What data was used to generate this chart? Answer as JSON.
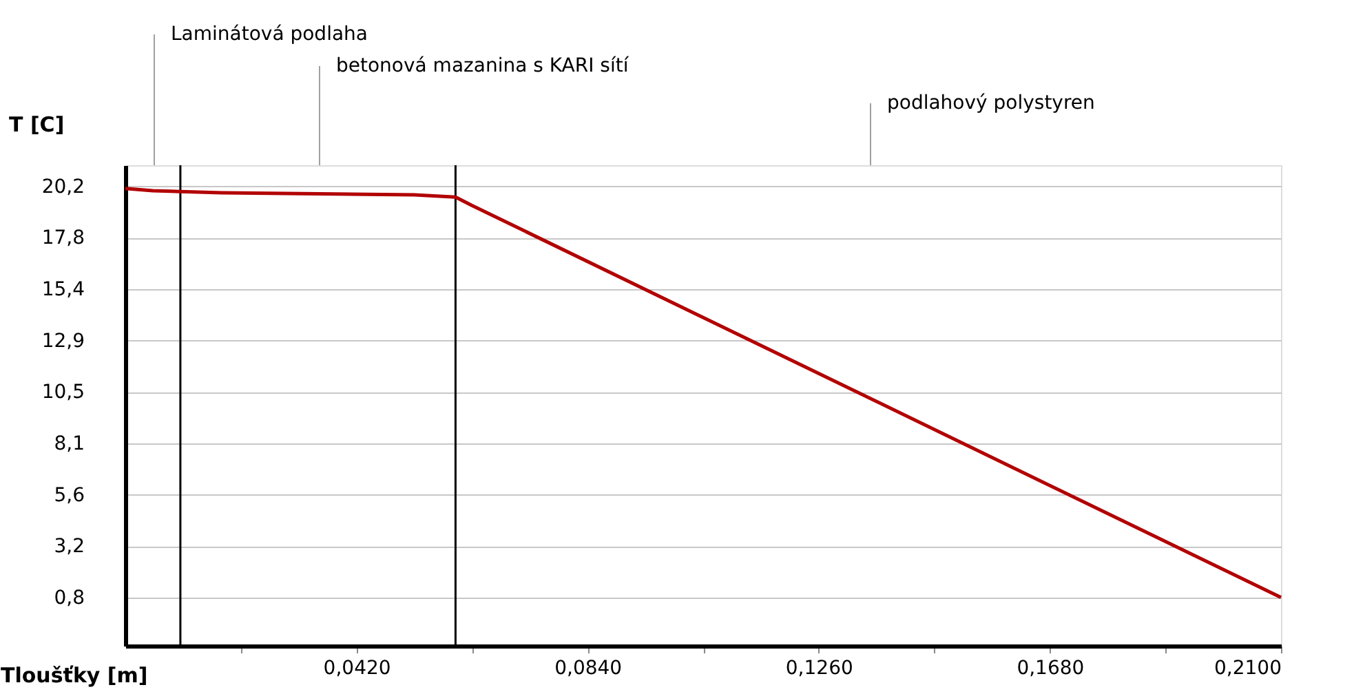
{
  "chart_data": {
    "type": "line",
    "xlabel": "Tloušťky [m]",
    "ylabel": "T [C]",
    "x": [
      0,
      0.005,
      0.0175,
      0.0525,
      0.06,
      0.063,
      0.21
    ],
    "series": [
      {
        "color": "#b20000",
        "values": [
          20.1,
          20.0,
          19.9,
          19.8,
          19.7,
          19.3,
          0.8
        ]
      }
    ],
    "xlim": [
      0,
      0.21
    ],
    "xticks": [
      {
        "value": 0.021,
        "label": null
      },
      {
        "value": 0.042,
        "label": "0,0420"
      },
      {
        "value": 0.063,
        "label": null
      },
      {
        "value": 0.084,
        "label": "0,0840"
      },
      {
        "value": 0.105,
        "label": null
      },
      {
        "value": 0.126,
        "label": "0,1260"
      },
      {
        "value": 0.147,
        "label": null
      },
      {
        "value": 0.168,
        "label": "0,1680"
      },
      {
        "value": 0.189,
        "label": null
      },
      {
        "value": 0.21,
        "label": "0,2100"
      }
    ],
    "ylim": [
      -1.48,
      21.2
    ],
    "yticks": [
      {
        "value": 0.8,
        "label": "0,8"
      },
      {
        "value": 3.225,
        "label": "3,2"
      },
      {
        "value": 5.65,
        "label": "5,6"
      },
      {
        "value": 8.075,
        "label": "8,1"
      },
      {
        "value": 10.5,
        "label": "10,5"
      },
      {
        "value": 12.925,
        "label": "12,9"
      },
      {
        "value": 15.35,
        "label": "15,4"
      },
      {
        "value": 17.775,
        "label": "17,8"
      },
      {
        "value": 20.2,
        "label": "20,2"
      }
    ],
    "grid": "y",
    "ref_lines": [
      {
        "axis": "x",
        "value": 0.01,
        "color": "#000000"
      },
      {
        "axis": "x",
        "value": 0.06,
        "color": "#000000"
      }
    ],
    "annotations": [
      "Laminátová podlaha",
      "betonová mazanina s KARI sítí",
      "podlahový polystyren"
    ]
  }
}
